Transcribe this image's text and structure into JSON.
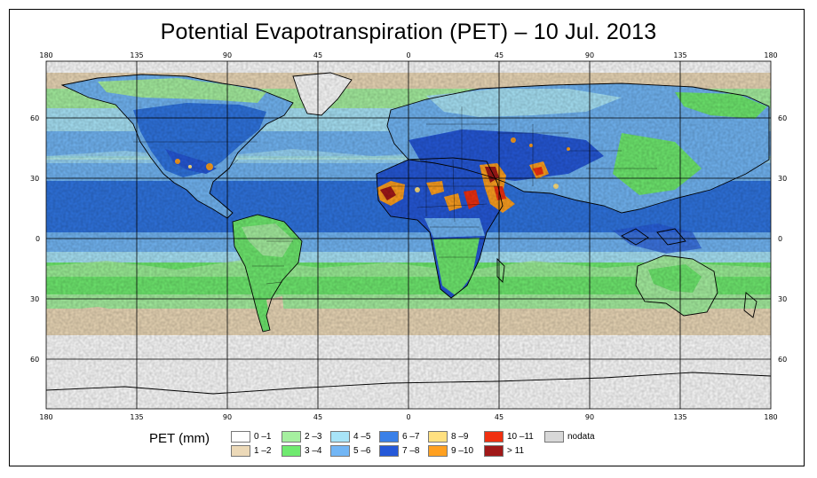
{
  "title": "Potential Evapotranspiration (PET) – 10 Jul. 2013",
  "map": {
    "longitude_ticks": [
      "180",
      "135",
      "90",
      "45",
      "0",
      "45",
      "90",
      "135",
      "180"
    ],
    "latitude_ticks": [
      "60",
      "30",
      "0",
      "30",
      "60"
    ],
    "ocean_color": "#2f74e0",
    "coastline_color": "#000000",
    "grid_color": "#000000"
  },
  "legend": {
    "title": "PET (mm)",
    "classes": [
      {
        "label": "0 –1",
        "color": "#ffffff"
      },
      {
        "label": "1 –2",
        "color": "#ecd9b8"
      },
      {
        "label": "2 –3",
        "color": "#a6f0a0"
      },
      {
        "label": "3 –4",
        "color": "#6fea6f"
      },
      {
        "label": "4 –5",
        "color": "#a8e4f8"
      },
      {
        "label": "5 –6",
        "color": "#72b6f5"
      },
      {
        "label": "6 –7",
        "color": "#3a80e8"
      },
      {
        "label": "7 –8",
        "color": "#2558d8"
      },
      {
        "label": "8 –9",
        "color": "#ffe080"
      },
      {
        "label": "9 –10",
        "color": "#ffa020"
      },
      {
        "label": "10 –11",
        "color": "#f03010"
      },
      {
        "label": "> 11",
        "color": "#a01818"
      },
      {
        "label": "nodata",
        "color": "#d8d8d8"
      }
    ]
  }
}
